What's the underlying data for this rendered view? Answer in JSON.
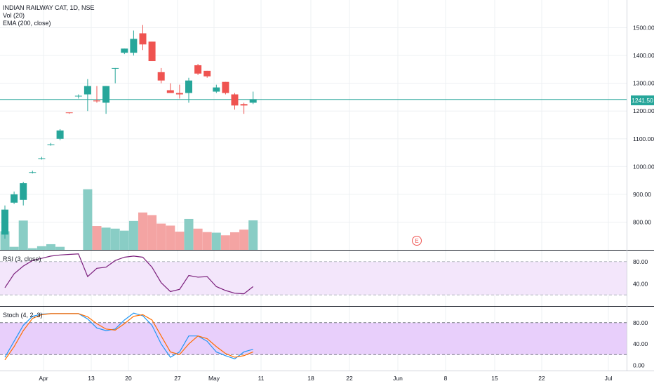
{
  "legend": {
    "symbol": "INDIAN RAILWAY CAT, 1D, NSE",
    "volume": "Vol (20)",
    "ema": "EMA (200, close)",
    "rsi": "RSI (3, close)",
    "stoch": "Stoch (4, 2, 3)"
  },
  "last_price": "1241.50",
  "earnings_marker": "E",
  "colors": {
    "up": "#26a69a",
    "down": "#ef5350",
    "up_volume": "#89cdc5",
    "down_volume": "#f4a4a3",
    "rsi_line": "#7b1f7c",
    "stoch_k": "#2196f3",
    "stoch_d": "#ff6d00",
    "band_fill": "#f3e6fb",
    "stoch_band_fill": "#e8cffb",
    "last_price_line": "#26a69a"
  },
  "chart_data": [
    {
      "type": "candlestick",
      "title": "INDIAN RAILWAY CAT, 1D, NSE",
      "ylim": [
        700,
        1600
      ],
      "y_ticks": [
        800,
        900,
        1000,
        1100,
        1200,
        1300,
        1400,
        1500
      ],
      "y_tick_labels": [
        "800.00",
        "900.00",
        "1000.00",
        "1100.00",
        "1200.00",
        "1300.00",
        "1400.00",
        "1500.00"
      ],
      "x_ticks": [
        "Apr",
        "13",
        "20",
        "27",
        "May",
        "11",
        "18",
        "22",
        "Jun",
        "8",
        "15",
        "22",
        "Jul"
      ],
      "last_price": 1241.5,
      "series": [
        {
          "o": 755,
          "h": 860,
          "l": 740,
          "c": 845
        },
        {
          "o": 870,
          "h": 910,
          "l": 865,
          "c": 900
        },
        {
          "o": 880,
          "h": 945,
          "l": 860,
          "c": 940
        },
        {
          "o": 980,
          "h": 985,
          "l": 975,
          "c": 980
        },
        {
          "o": 1030,
          "h": 1035,
          "l": 1025,
          "c": 1030
        },
        {
          "o": 1080,
          "h": 1085,
          "l": 1075,
          "c": 1080
        },
        {
          "o": 1100,
          "h": 1135,
          "l": 1095,
          "c": 1130
        },
        {
          "o": 1195,
          "h": 1195,
          "l": 1190,
          "c": 1193
        },
        {
          "o": 1255,
          "h": 1260,
          "l": 1245,
          "c": 1255
        },
        {
          "o": 1260,
          "h": 1315,
          "l": 1200,
          "c": 1290
        },
        {
          "o": 1238,
          "h": 1290,
          "l": 1230,
          "c": 1235
        },
        {
          "o": 1230,
          "h": 1290,
          "l": 1190,
          "c": 1290
        },
        {
          "o": 1355,
          "h": 1355,
          "l": 1300,
          "c": 1355
        },
        {
          "o": 1410,
          "h": 1425,
          "l": 1405,
          "c": 1425
        },
        {
          "o": 1410,
          "h": 1490,
          "l": 1400,
          "c": 1460
        },
        {
          "o": 1480,
          "h": 1510,
          "l": 1420,
          "c": 1440
        },
        {
          "o": 1450,
          "h": 1450,
          "l": 1380,
          "c": 1380
        },
        {
          "o": 1340,
          "h": 1355,
          "l": 1300,
          "c": 1310
        },
        {
          "o": 1275,
          "h": 1300,
          "l": 1265,
          "c": 1265
        },
        {
          "o": 1265,
          "h": 1295,
          "l": 1245,
          "c": 1260
        },
        {
          "o": 1265,
          "h": 1320,
          "l": 1230,
          "c": 1310
        },
        {
          "o": 1365,
          "h": 1370,
          "l": 1330,
          "c": 1335
        },
        {
          "o": 1345,
          "h": 1345,
          "l": 1320,
          "c": 1325
        },
        {
          "o": 1270,
          "h": 1295,
          "l": 1265,
          "c": 1285
        },
        {
          "o": 1305,
          "h": 1305,
          "l": 1260,
          "c": 1265
        },
        {
          "o": 1260,
          "h": 1265,
          "l": 1205,
          "c": 1220
        },
        {
          "o": 1225,
          "h": 1230,
          "l": 1190,
          "c": 1220
        },
        {
          "o": 1230,
          "h": 1270,
          "l": 1225,
          "c": 1242
        }
      ]
    },
    {
      "type": "bar",
      "title": "Vol (20)",
      "values": [
        92,
        15,
        145,
        8,
        18,
        28,
        15,
        0,
        0,
        300,
        118,
        110,
        105,
        95,
        143,
        185,
        172,
        130,
        120,
        90,
        153,
        105,
        88,
        85,
        72,
        87,
        100,
        146
      ],
      "ylim": [
        0,
        330
      ]
    },
    {
      "type": "line",
      "title": "RSI (3, close)",
      "ylim": [
        0,
        100
      ],
      "y_ticks": [
        40,
        80
      ],
      "y_tick_labels": [
        "40.00",
        "80.00"
      ],
      "band": [
        20,
        80
      ],
      "series": [
        {
          "values": [
            33,
            58,
            72,
            82,
            86,
            90,
            92,
            93,
            94,
            53,
            68,
            70,
            82,
            88,
            90,
            88,
            70,
            42,
            26,
            30,
            55,
            52,
            53,
            35,
            28,
            23,
            22,
            35
          ]
        }
      ]
    },
    {
      "type": "line",
      "title": "Stoch (4, 2, 3)",
      "ylim": [
        -10,
        110
      ],
      "y_ticks": [
        0,
        40,
        80
      ],
      "y_tick_labels": [
        "0.00",
        "40.00",
        "80.00"
      ],
      "band": [
        20,
        80
      ],
      "series": [
        {
          "values": [
            15,
            45,
            75,
            92,
            96,
            97,
            97,
            97,
            97,
            87,
            70,
            65,
            68,
            85,
            98,
            93,
            75,
            40,
            15,
            25,
            55,
            55,
            45,
            25,
            18,
            12,
            25,
            30
          ]
        },
        {
          "values": [
            10,
            35,
            65,
            88,
            95,
            97,
            97,
            97,
            97,
            91,
            78,
            68,
            66,
            78,
            92,
            95,
            85,
            55,
            25,
            20,
            40,
            55,
            50,
            35,
            22,
            15,
            18,
            25
          ]
        }
      ]
    }
  ]
}
